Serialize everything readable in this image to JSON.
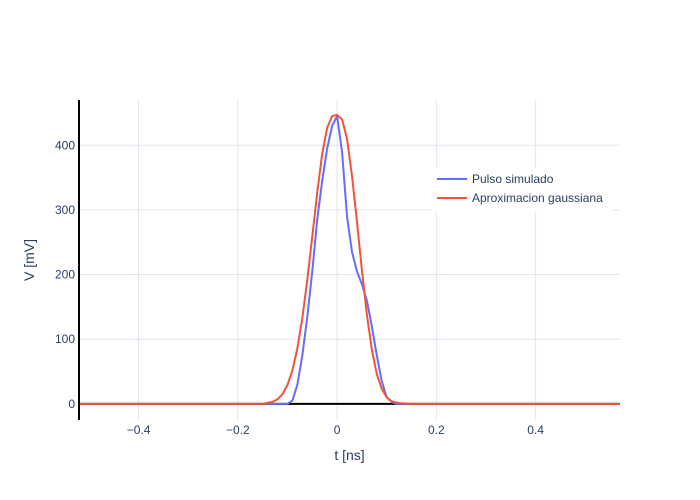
{
  "chart_data": {
    "type": "line",
    "xlabel": "t [ns]",
    "ylabel": "V [mV]",
    "xlim": [
      -0.52,
      0.57
    ],
    "ylim": [
      -25,
      470
    ],
    "xticks": [
      -0.4,
      -0.2,
      0,
      0.2,
      0.4
    ],
    "xtick_labels": [
      "−0.4",
      "−0.2",
      "0",
      "0.2",
      "0.4"
    ],
    "yticks": [
      0,
      100,
      200,
      300,
      400
    ],
    "ytick_labels": [
      "0",
      "100",
      "200",
      "300",
      "400"
    ],
    "grid": true,
    "legend_position": "top-right",
    "series": [
      {
        "name": "Pulso simulado",
        "color": "#636efa",
        "x": [
          -0.52,
          -0.2,
          -0.1,
          -0.09,
          -0.08,
          -0.07,
          -0.06,
          -0.05,
          -0.04,
          -0.03,
          -0.02,
          -0.01,
          0,
          0.01,
          0.02,
          0.03,
          0.04,
          0.05,
          0.06,
          0.07,
          0.08,
          0.09,
          0.1,
          0.11,
          0.12,
          0.2,
          0.57
        ],
        "y": [
          0,
          0,
          0,
          5,
          30,
          75,
          135,
          205,
          285,
          345,
          395,
          430,
          445,
          390,
          290,
          235,
          205,
          185,
          160,
          120,
          75,
          35,
          10,
          3,
          0,
          0,
          0
        ]
      },
      {
        "name": "Aproximacion gaussiana",
        "color": "#ef553b",
        "x": [
          -0.52,
          -0.15,
          -0.13,
          -0.12,
          -0.11,
          -0.1,
          -0.09,
          -0.08,
          -0.07,
          -0.06,
          -0.05,
          -0.04,
          -0.03,
          -0.02,
          -0.01,
          0,
          0.01,
          0.02,
          0.03,
          0.04,
          0.05,
          0.06,
          0.07,
          0.08,
          0.09,
          0.1,
          0.11,
          0.12,
          0.13,
          0.15,
          0.57
        ],
        "y": [
          0,
          0,
          3,
          7,
          15,
          29,
          52,
          86,
          133,
          192,
          259,
          327,
          387,
          427,
          445,
          447,
          440,
          410,
          353,
          282,
          207,
          138,
          84,
          46,
          23,
          10,
          4,
          2,
          1,
          0,
          0
        ]
      }
    ]
  }
}
